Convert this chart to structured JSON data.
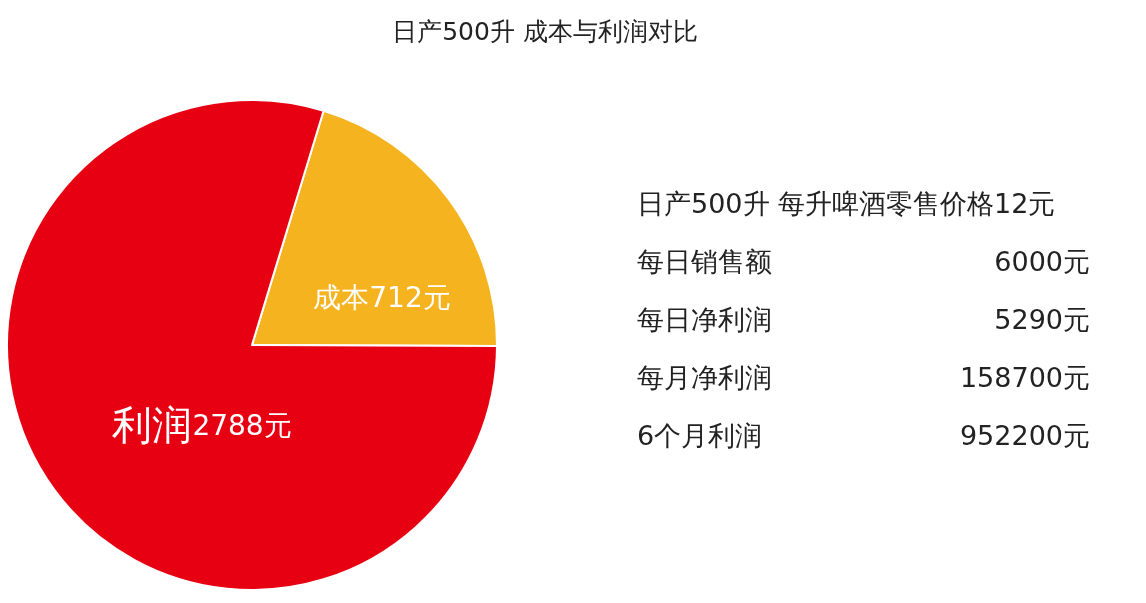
{
  "chart_data": {
    "type": "pie",
    "title": "日产500升 成本与利润对比",
    "categories": [
      "成本",
      "利润"
    ],
    "values": [
      712,
      2788
    ],
    "colors": [
      "#f5b31f",
      "#e60012"
    ],
    "value_labels": [
      "712元",
      "2788元"
    ],
    "annotations": [
      "日产500升 每升啤酒零售价格12元",
      "每日销售额",
      "6000元",
      "每日净利润",
      "5290元",
      "每月净利润",
      "158700元",
      "6个月利润",
      "952200元"
    ]
  }
}
